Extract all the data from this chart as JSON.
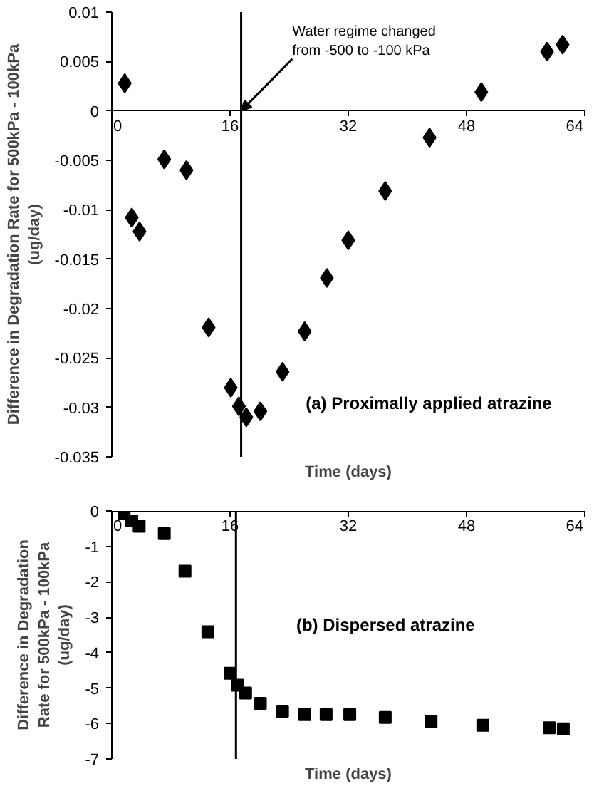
{
  "chart_data": [
    {
      "type": "scatter",
      "xlabel": "Time (days)",
      "ylabel": "Difference in Degradation Rate for 500kPa - 100kPa\n(ug/day)",
      "x": [
        1.75,
        2.7,
        3.75,
        7.1,
        10.1,
        13.1,
        16.1,
        17.2,
        18.2,
        20.1,
        23.1,
        26.1,
        29.1,
        32.0,
        37.0,
        43.0,
        50.0,
        58.9,
        61.0
      ],
      "series": [
        {
          "color": "#000000",
          "values": [
            0.0028,
            -0.0108,
            -0.0122,
            -0.0049,
            -0.006,
            -0.0219,
            -0.028,
            -0.0299,
            -0.031,
            -0.0304,
            -0.0264,
            -0.0223,
            -0.0169,
            -0.0131,
            -0.0081,
            -0.0027,
            0.0019,
            0.006,
            0.0067
          ]
        }
      ],
      "marker": "diamond",
      "xlim": [
        0,
        64
      ],
      "xticks": [
        0,
        16,
        32,
        48,
        64
      ],
      "ylim": [
        -0.035,
        0.01
      ],
      "yticks": [
        -0.035,
        -0.03,
        -0.025,
        -0.02,
        -0.015,
        -0.01,
        -0.005,
        0,
        0.005,
        0.01
      ],
      "grid": false,
      "ref_lines": [
        {
          "axis": "x",
          "value": 17.5,
          "color": "#000000"
        }
      ],
      "annotations": [
        {
          "text": "Water regime changed\nfrom -500 to -100 kPa",
          "x": 17.5,
          "y": 0
        },
        "(a) Proximally applied atrazine"
      ]
    },
    {
      "type": "scatter",
      "xlabel": "Time (days)",
      "ylabel": "Difference in Degradation\nRate for 500kPa - 100kPa\n(ug/day)",
      "x": [
        1.66,
        2.7,
        3.7,
        7.1,
        9.9,
        13.0,
        16.0,
        17.0,
        18.1,
        20.1,
        23.1,
        26.1,
        29.0,
        32.2,
        37.0,
        43.2,
        50.2,
        59.2,
        61.1
      ],
      "series": [
        {
          "color": "#000000",
          "values": [
            -0.07,
            -0.28,
            -0.43,
            -0.64,
            -1.7,
            -3.41,
            -4.58,
            -4.92,
            -5.14,
            -5.43,
            -5.65,
            -5.75,
            -5.75,
            -5.75,
            -5.83,
            -5.94,
            -6.05,
            -6.12,
            -6.15
          ]
        }
      ],
      "marker": "square",
      "xlim": [
        0,
        64
      ],
      "xticks": [
        0,
        16,
        32,
        48,
        64
      ],
      "ylim": [
        -7,
        0
      ],
      "yticks": [
        -7,
        -6,
        -5,
        -4,
        -3,
        -2,
        -1,
        0
      ],
      "grid": false,
      "ref_lines": [
        {
          "axis": "x",
          "value": 16.8,
          "color": "#000000"
        }
      ],
      "annotations": [
        "(b) Dispersed atrazine"
      ]
    }
  ]
}
